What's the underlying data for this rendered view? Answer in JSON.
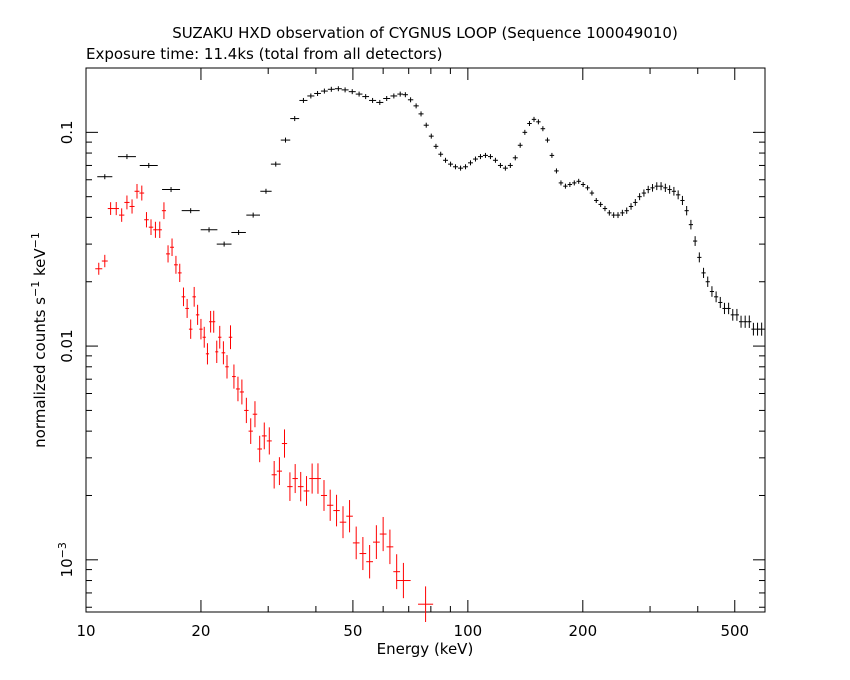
{
  "chart_data": {
    "type": "scatter",
    "title": "SUZAKU HXD observation of CYGNUS LOOP (Sequence 100049010)",
    "subtitle": "Exposure time: 11.4ks (total from all detectors)",
    "xlabel": "Energy (keV)",
    "ylabel_main": "normalized counts s",
    "ylabel_sup1": "−1",
    "ylabel_mid": " keV",
    "ylabel_sup2": "−1",
    "x_scale": "log",
    "y_scale": "log",
    "xlim": [
      10,
      600
    ],
    "ylim": [
      0.00057,
      0.2
    ],
    "x_ticks": [
      {
        "value": 10,
        "label": "10"
      },
      {
        "value": 20,
        "label": "20"
      },
      {
        "value": 50,
        "label": "50"
      },
      {
        "value": 100,
        "label": "100"
      },
      {
        "value": 200,
        "label": "200"
      },
      {
        "value": 500,
        "label": "500"
      }
    ],
    "y_ticks": [
      {
        "value": 0.1,
        "label": "0.1"
      },
      {
        "value": 0.01,
        "label": "0.01"
      },
      {
        "value": 0.001,
        "label_base": "10",
        "label_exp": "−3"
      }
    ],
    "grid": false,
    "legend": "none",
    "series": [
      {
        "color": "#000000",
        "points": [
          [
            11.2,
            0.062
          ],
          [
            12.8,
            0.077
          ],
          [
            14.6,
            0.07
          ],
          [
            16.7,
            0.054
          ],
          [
            18.8,
            0.043
          ],
          [
            21.0,
            0.035
          ],
          [
            23.0,
            0.03
          ],
          [
            25.1,
            0.034
          ],
          [
            27.4,
            0.041
          ],
          [
            29.6,
            0.053
          ],
          [
            31.4,
            0.071
          ],
          [
            33.3,
            0.092
          ],
          [
            35.2,
            0.116
          ],
          [
            37.1,
            0.141
          ],
          [
            38.8,
            0.148
          ],
          [
            40.4,
            0.152
          ],
          [
            42.1,
            0.156
          ],
          [
            43.9,
            0.159
          ],
          [
            45.8,
            0.16
          ],
          [
            47.7,
            0.158
          ],
          [
            49.8,
            0.155
          ],
          [
            51.9,
            0.151
          ],
          [
            54.0,
            0.147
          ],
          [
            56.3,
            0.141
          ],
          [
            58.8,
            0.138
          ],
          [
            61.3,
            0.144
          ],
          [
            64.0,
            0.148
          ],
          [
            66.5,
            0.151
          ],
          [
            68.6,
            0.15
          ],
          [
            70.8,
            0.142
          ],
          [
            73.2,
            0.133
          ],
          [
            75.4,
            0.122
          ],
          [
            77.8,
            0.108
          ],
          [
            80.2,
            0.096
          ],
          [
            82.5,
            0.086
          ],
          [
            84.9,
            0.079
          ],
          [
            87.4,
            0.074
          ],
          [
            90.1,
            0.071
          ],
          [
            92.8,
            0.069
          ],
          [
            95.7,
            0.068
          ],
          [
            98.6,
            0.069
          ],
          [
            101.6,
            0.072
          ],
          [
            104.7,
            0.075
          ],
          [
            107.9,
            0.077
          ],
          [
            111.2,
            0.078
          ],
          [
            114.6,
            0.077
          ],
          [
            118.1,
            0.074
          ],
          [
            121.7,
            0.07
          ],
          [
            125.4,
            0.068
          ],
          [
            129.2,
            0.07
          ],
          [
            133.1,
            0.076
          ],
          [
            137.1,
            0.087
          ],
          [
            141.0,
            0.1
          ],
          [
            145.0,
            0.11
          ],
          [
            149.0,
            0.115
          ],
          [
            153.0,
            0.112
          ],
          [
            157.2,
            0.104
          ],
          [
            161.6,
            0.092
          ],
          [
            166.0,
            0.078
          ],
          [
            170.6,
            0.066
          ],
          [
            175.3,
            0.058
          ],
          [
            180.1,
            0.056
          ],
          [
            185.0,
            0.057
          ],
          [
            190.0,
            0.058
          ],
          [
            195.1,
            0.059
          ],
          [
            200.4,
            0.057
          ],
          [
            205.8,
            0.055
          ],
          [
            211.3,
            0.052
          ],
          [
            216.9,
            0.048
          ],
          [
            222.7,
            0.046
          ],
          [
            228.6,
            0.044
          ],
          [
            234.7,
            0.042
          ],
          [
            240.9,
            0.041
          ],
          [
            247.3,
            0.041
          ],
          [
            253.9,
            0.042
          ],
          [
            260.6,
            0.043
          ],
          [
            267.5,
            0.045
          ],
          [
            274.5,
            0.047
          ],
          [
            281.7,
            0.05
          ],
          [
            289.1,
            0.052
          ],
          [
            296.7,
            0.054
          ],
          [
            304.5,
            0.055
          ],
          [
            312.4,
            0.056
          ],
          [
            320.6,
            0.056
          ],
          [
            329.0,
            0.055
          ],
          [
            337.6,
            0.054
          ],
          [
            346.4,
            0.053
          ],
          [
            355.4,
            0.051
          ],
          [
            364.7,
            0.048
          ],
          [
            374.1,
            0.043
          ],
          [
            383.8,
            0.037
          ],
          [
            393.7,
            0.031
          ],
          [
            403.8,
            0.026
          ],
          [
            414.2,
            0.022
          ],
          [
            424.8,
            0.02
          ],
          [
            435.7,
            0.018
          ],
          [
            446.8,
            0.017
          ],
          [
            458.2,
            0.016
          ],
          [
            469.9,
            0.015
          ],
          [
            481.8,
            0.015
          ],
          [
            494.0,
            0.014
          ],
          [
            506.5,
            0.014
          ],
          [
            519.3,
            0.013
          ],
          [
            532.4,
            0.013
          ],
          [
            545.8,
            0.013
          ],
          [
            559.5,
            0.012
          ],
          [
            573.6,
            0.012
          ],
          [
            588.0,
            0.012
          ]
        ]
      },
      {
        "color": "#ff0000",
        "points": [
          [
            10.8,
            0.023
          ],
          [
            11.2,
            0.025
          ],
          [
            11.6,
            0.044
          ],
          [
            12.0,
            0.044
          ],
          [
            12.4,
            0.041
          ],
          [
            12.8,
            0.047
          ],
          [
            13.2,
            0.045
          ],
          [
            13.6,
            0.053
          ],
          [
            14.0,
            0.052
          ],
          [
            14.4,
            0.039
          ],
          [
            14.8,
            0.036
          ],
          [
            15.2,
            0.035
          ],
          [
            15.6,
            0.035
          ],
          [
            16.0,
            0.043
          ],
          [
            16.4,
            0.027
          ],
          [
            16.8,
            0.029
          ],
          [
            17.2,
            0.024
          ],
          [
            17.6,
            0.022
          ],
          [
            18.0,
            0.017
          ],
          [
            18.4,
            0.015
          ],
          [
            18.8,
            0.012
          ],
          [
            19.2,
            0.017
          ],
          [
            19.6,
            0.014
          ],
          [
            20.0,
            0.012
          ],
          [
            20.4,
            0.011
          ],
          [
            20.8,
            0.0092
          ],
          [
            21.2,
            0.013
          ],
          [
            21.6,
            0.013
          ],
          [
            22.0,
            0.0094
          ],
          [
            22.4,
            0.011
          ],
          [
            22.9,
            0.0093
          ],
          [
            23.4,
            0.008
          ],
          [
            23.9,
            0.011
          ],
          [
            24.4,
            0.0072
          ],
          [
            25.0,
            0.0063
          ],
          [
            25.6,
            0.0061
          ],
          [
            26.3,
            0.005
          ],
          [
            27.0,
            0.004
          ],
          [
            27.7,
            0.0048
          ],
          [
            28.5,
            0.0033
          ],
          [
            29.3,
            0.0038
          ],
          [
            30.2,
            0.0036
          ],
          [
            31.1,
            0.0025
          ],
          [
            32.1,
            0.0026
          ],
          [
            33.1,
            0.0035
          ],
          [
            34.2,
            0.0022
          ],
          [
            35.3,
            0.0024
          ],
          [
            36.5,
            0.0022
          ],
          [
            37.8,
            0.0021
          ],
          [
            39.1,
            0.0024
          ],
          [
            40.5,
            0.0024
          ],
          [
            42.0,
            0.002
          ],
          [
            43.6,
            0.0018
          ],
          [
            45.3,
            0.0017
          ],
          [
            47.1,
            0.0015
          ],
          [
            49.0,
            0.0016
          ],
          [
            51.0,
            0.0012
          ],
          [
            53.1,
            0.00107
          ],
          [
            55.3,
            0.00098
          ],
          [
            57.6,
            0.00121
          ],
          [
            60.0,
            0.00132
          ],
          [
            62.5,
            0.00115
          ],
          [
            65.1,
            0.00088
          ],
          [
            67.8,
            0.0008
          ],
          [
            77.5,
            0.00062
          ]
        ]
      }
    ]
  }
}
